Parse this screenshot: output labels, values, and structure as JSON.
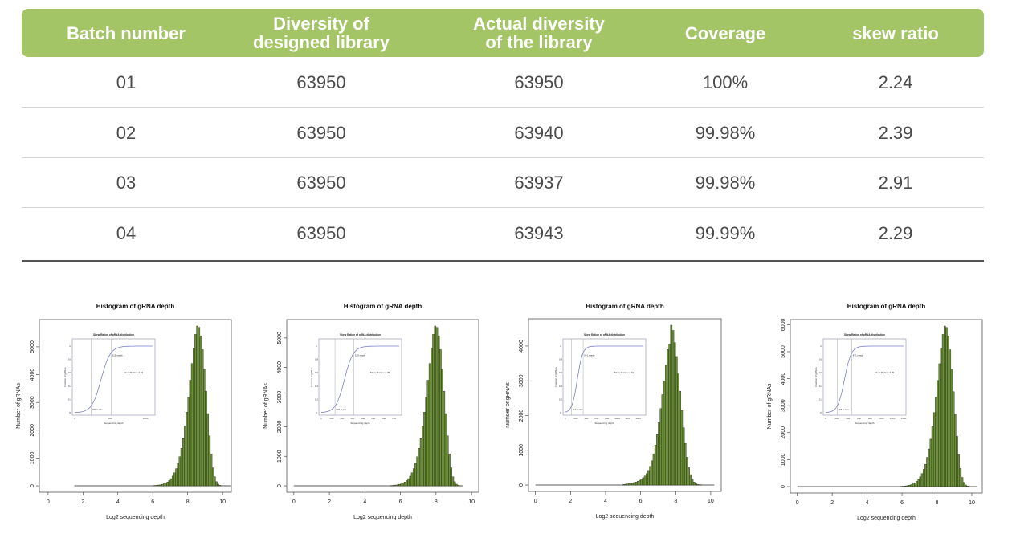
{
  "table": {
    "header_color": "#a3c565",
    "columns": [
      "Batch number",
      "Diversity of\ndesigned library",
      "Actual diversity\nof the library",
      "Coverage",
      "skew ratio"
    ],
    "rows": [
      [
        "01",
        "63950",
        "63950",
        "100%",
        "2.24"
      ],
      [
        "02",
        "63950",
        "63940",
        "99.98%",
        "2.39"
      ],
      [
        "03",
        "63950",
        "63937",
        "99.98%",
        "2.91"
      ],
      [
        "04",
        "63950",
        "63943",
        "99.99%",
        "2.29"
      ]
    ]
  },
  "chart_data": [
    {
      "type": "bar",
      "title": "Histogram of gRNA depth",
      "xlabel": "Log2 sequencing depth",
      "ylabel": "Number of gRNAs",
      "xticks": [
        0,
        2,
        4,
        6,
        8,
        10
      ],
      "yticks": [
        0,
        1000,
        2000,
        3000,
        4000,
        5000
      ],
      "xlim": [
        -0.5,
        10.5
      ],
      "baseline_range": [
        1.5,
        10.5
      ],
      "bin_width": 0.1,
      "bin_start": 6.0,
      "values": [
        10,
        15,
        20,
        30,
        40,
        55,
        75,
        100,
        140,
        190,
        260,
        350,
        470,
        620,
        800,
        1050,
        1350,
        1700,
        2150,
        2650,
        3200,
        3800,
        4400,
        4950,
        5450,
        5750,
        5700,
        5400,
        4900,
        4200,
        3400,
        2600,
        1800,
        1150,
        650,
        330,
        150,
        60,
        20,
        5
      ],
      "bar_color": "#6a8f35",
      "inset": {
        "title": "Skew Ration of gRNA distribution",
        "xlabel": "Sequencing depth",
        "ylabel": "Fraction of gRNAs",
        "xticks": [
          0,
          500,
          1000
        ],
        "xmax": 1100,
        "yticks": [
          0,
          0.2,
          0.4,
          0.6,
          0.8,
          1
        ],
        "low_reads": 230,
        "high_reads": 515,
        "low_label": "230 reads",
        "high_label": "515 reads",
        "skew_label": "Skew Ration: 2.24",
        "curve_color": "#7b7fd0"
      }
    },
    {
      "type": "bar",
      "title": "Histogram of gRNA depth",
      "xlabel": "Log2 sequencing depth",
      "ylabel": "Number of gRNAs",
      "xticks": [
        0,
        2,
        4,
        6,
        8,
        10
      ],
      "yticks": [
        0,
        1000,
        2000,
        3000,
        4000,
        5000
      ],
      "xlim": [
        -0.4,
        10.4
      ],
      "baseline_range": [
        0,
        9.5
      ],
      "bin_width": 0.1,
      "bin_start": 5.4,
      "values": [
        9,
        14,
        19,
        28,
        38,
        52,
        70,
        94,
        132,
        179,
        244,
        329,
        442,
        583,
        752,
        987,
        1269,
        1598,
        2021,
        2491,
        3008,
        3572,
        4136,
        4653,
        5123,
        5405,
        5358,
        5076,
        4606,
        3948,
        3196,
        2444,
        1692,
        1081,
        611,
        310,
        141,
        56,
        19,
        5
      ],
      "bar_color": "#6a8f35",
      "inset": {
        "title": "Skew Ration of gRNA distribution",
        "xlabel": "Sequencing depth",
        "ylabel": "Fraction of gRNAs",
        "xticks": [
          0,
          100,
          200,
          300,
          400,
          500,
          600,
          700
        ],
        "xmax": 750,
        "yticks": [
          0,
          0.2,
          0.4,
          0.6,
          0.8,
          1
        ],
        "low_reads": 132,
        "high_reads": 315,
        "low_label": "132 reads",
        "high_label": "315 reads",
        "skew_label": "Skew Ration: 2.39",
        "curve_color": "#7b7fd0"
      }
    },
    {
      "type": "bar",
      "title": "Histogram of gRNA depth",
      "xlabel": "Log2 sequencing depth",
      "ylabel": "Number of gRNAs",
      "xticks": [
        0,
        2,
        4,
        6,
        8,
        10
      ],
      "yticks": [
        0,
        1000,
        2000,
        3000,
        4000
      ],
      "xlim": [
        -0.4,
        10.6
      ],
      "baseline_range": [
        0,
        10.2
      ],
      "bin_width": 0.1,
      "bin_start": 5.0,
      "values": [
        20,
        25,
        30,
        40,
        50,
        60,
        75,
        90,
        110,
        140,
        170,
        210,
        260,
        330,
        420,
        540,
        700,
        900,
        1150,
        1450,
        1800,
        2200,
        2600,
        3000,
        3450,
        3900,
        4050,
        4600,
        4450,
        4100,
        3700,
        3200,
        2700,
        2150,
        1650,
        1200,
        800,
        500,
        300,
        170,
        90,
        45,
        20,
        10,
        5
      ],
      "bar_color": "#6a8f35",
      "inset": {
        "title": "Skew Ration of gRNA distribution",
        "xlabel": "Sequencing depth",
        "ylabel": "Fraction of gRNAs",
        "xticks": [
          0,
          200,
          400,
          600,
          800,
          1000,
          1200,
          1400
        ],
        "xmax": 1500,
        "yticks": [
          0,
          0.2,
          0.4,
          0.6,
          0.8,
          1
        ],
        "low_reads": 117,
        "high_reads": 341,
        "low_label": "117 reads",
        "high_label": "341 reads",
        "skew_label": "Skew Ration: 2.91",
        "curve_color": "#7b7fd0"
      }
    },
    {
      "type": "bar",
      "title": "Histogram of gRNA depth",
      "xlabel": "Log2 sequencing depth",
      "ylabel": "Number of gRNAs",
      "xticks": [
        0,
        2,
        4,
        6,
        8,
        10
      ],
      "yticks": [
        0,
        1000,
        2000,
        3000,
        4000,
        5000,
        6000
      ],
      "xlim": [
        -0.4,
        10.6
      ],
      "baseline_range": [
        0,
        10.3
      ],
      "bin_width": 0.1,
      "bin_start": 5.9,
      "values": [
        10,
        16,
        21,
        31,
        41,
        57,
        78,
        104,
        145,
        197,
        269,
        362,
        486,
        642,
        828,
        1087,
        1397,
        1760,
        2225,
        2743,
        3312,
        3933,
        4554,
        5123,
        5641,
        5951,
        5900,
        5589,
        5072,
        4347,
        3519,
        2691,
        1863,
        1190,
        673,
        342,
        155,
        62,
        21,
        5
      ],
      "bar_color": "#6a8f35",
      "inset": {
        "title": "Skew Ration of gRNA distribution",
        "xlabel": "Sequencing depth",
        "ylabel": "Fraction of gRNAs",
        "xticks": [
          0,
          200,
          400,
          600,
          800,
          1000,
          1200,
          1400
        ],
        "xmax": 1400,
        "yticks": [
          0,
          0.2,
          0.4,
          0.6,
          0.8,
          1
        ],
        "low_reads": 206,
        "high_reads": 471,
        "low_label": "206 reads",
        "high_label": "471 reads",
        "skew_label": "Skew Ration: 2.29",
        "curve_color": "#7b7fd0"
      }
    }
  ]
}
